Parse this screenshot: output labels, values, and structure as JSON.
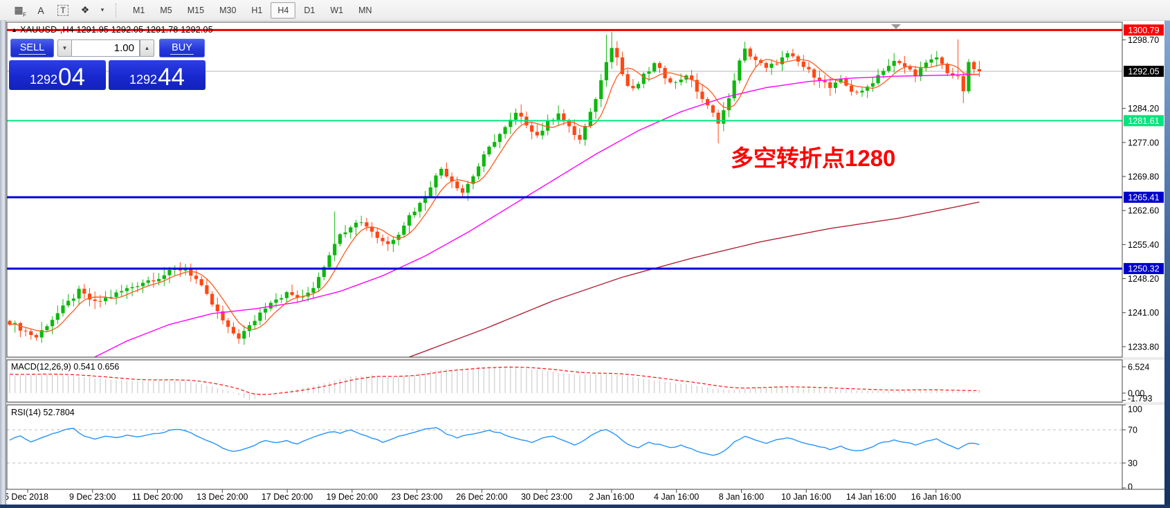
{
  "toolbar": {
    "icons": [
      {
        "name": "indicator-list-icon",
        "glyph": "▦",
        "sub": "F"
      },
      {
        "name": "insert-text-icon",
        "glyph": "A",
        "sub": ""
      },
      {
        "name": "text-label-icon",
        "glyph": "T",
        "sub": ""
      },
      {
        "name": "shapes-icon",
        "glyph": "❖",
        "sub": ""
      },
      {
        "name": "shapes-caret-icon",
        "glyph": "▾",
        "sub": ""
      }
    ],
    "timeframes": [
      "M1",
      "M5",
      "M15",
      "M30",
      "H1",
      "H4",
      "D1",
      "W1",
      "MN"
    ],
    "active_timeframe": "H4"
  },
  "chart_header": {
    "marker": "▲",
    "text": "XAUUSD-,H4  1291.95 1292.05 1291.78 1292.05"
  },
  "annotation": {
    "text": "多空转折点1280",
    "color": "#ff0000"
  },
  "trade_panel": {
    "sell_label": "SELL",
    "buy_label": "BUY",
    "volume": "1.00",
    "spin_down_icon": "▼",
    "spin_up_icon": "▲",
    "sell_price_main": "1292",
    "sell_price_pips": "04",
    "buy_price_main": "1292",
    "buy_price_pips": "44"
  },
  "chart_data": {
    "type": "candlestick",
    "symbol": "XAUUSD-",
    "period": "H4",
    "ohlc": {
      "open": 1291.95,
      "high": 1292.05,
      "low": 1291.78,
      "close": 1292.05
    },
    "price_axis_ticks": [
      "1298.70",
      "1284.20",
      "1277.00",
      "1269.80",
      "1262.60",
      "1255.40",
      "1248.20",
      "1241.00",
      "1233.80"
    ],
    "price_lines": [
      {
        "price": 1300.79,
        "label": "1300.79",
        "color": "#ee0000",
        "badge_bg": "#ff0000",
        "badge_fg": "#ffffff",
        "width": 3
      },
      {
        "price": 1281.61,
        "label": "1281.61",
        "color": "#00e57d",
        "badge_bg": "#00e57d",
        "badge_fg": "#ffffff",
        "width": 2
      },
      {
        "price": 1265.41,
        "label": "1265.41",
        "color": "#0000dd",
        "badge_bg": "#0000cc",
        "badge_fg": "#ffffff",
        "width": 3
      },
      {
        "price": 1250.32,
        "label": "1250.32",
        "color": "#0000dd",
        "badge_bg": "#0000cc",
        "badge_fg": "#ffffff",
        "width": 3
      }
    ],
    "current_price": {
      "price": 1292.05,
      "label": "1292.05",
      "line_color": "#b4b4b4",
      "badge_bg": "#000000",
      "badge_fg": "#ffffff"
    },
    "top_marker": {
      "glyph": "triangle-down",
      "color": "#9a9a9a"
    },
    "time_axis_labels": [
      "5 Dec 2018",
      "9 Dec 23:00",
      "11 Dec 20:00",
      "13 Dec 20:00",
      "17 Dec 20:00",
      "19 Dec 20:00",
      "23 Dec 23:00",
      "26 Dec 20:00",
      "30 Dec 23:00",
      "2 Jan 16:00",
      "4 Jan 16:00",
      "8 Jan 16:00",
      "10 Jan 16:00",
      "14 Jan 16:00",
      "16 Jan 16:00"
    ],
    "colors": {
      "bull": "#0db80d",
      "bear": "#ff4714",
      "ma_fast": "#ff5a1e",
      "ma_mid": "#ff00ff",
      "ma_slow": "#b22235",
      "macd_hist": "#cdcdcd",
      "macd_signal": "#ff1111",
      "rsi_line": "#2492ff",
      "rsi_levels": "#bcbcbc"
    },
    "candles": {
      "count": 183,
      "close_waypoints": [
        [
          0,
          1239.0
        ],
        [
          3,
          1237.0
        ],
        [
          5,
          1235.8
        ],
        [
          7,
          1238.5
        ],
        [
          10,
          1242.0
        ],
        [
          13,
          1245.5
        ],
        [
          16,
          1243.0
        ],
        [
          19,
          1244.5
        ],
        [
          22,
          1246.0
        ],
        [
          25,
          1247.5
        ],
        [
          28,
          1248.5
        ],
        [
          31,
          1250.0
        ],
        [
          33,
          1250.3
        ],
        [
          35,
          1248.0
        ],
        [
          37,
          1244.5
        ],
        [
          39,
          1241.0
        ],
        [
          41,
          1237.5
        ],
        [
          43,
          1235.8
        ],
        [
          45,
          1238.0
        ],
        [
          47,
          1241.0
        ],
        [
          49,
          1243.5
        ],
        [
          52,
          1245.0
        ],
        [
          55,
          1244.0
        ],
        [
          57,
          1246.5
        ],
        [
          59,
          1251.0
        ],
        [
          61,
          1256.0
        ],
        [
          63,
          1258.5
        ],
        [
          65,
          1260.5
        ],
        [
          67,
          1259.5
        ],
        [
          69,
          1257.0
        ],
        [
          71,
          1255.5
        ],
        [
          73,
          1258.0
        ],
        [
          75,
          1261.5
        ],
        [
          77,
          1264.0
        ],
        [
          79,
          1268.0
        ],
        [
          81,
          1271.5
        ],
        [
          83,
          1269.0
        ],
        [
          85,
          1266.5
        ],
        [
          87,
          1270.0
        ],
        [
          89,
          1274.0
        ],
        [
          91,
          1277.5
        ],
        [
          93,
          1280.0
        ],
        [
          95,
          1283.0
        ],
        [
          97,
          1281.0
        ],
        [
          99,
          1278.5
        ],
        [
          101,
          1281.0
        ],
        [
          103,
          1283.5
        ],
        [
          105,
          1280.0
        ],
        [
          107,
          1277.5
        ],
        [
          109,
          1283.0
        ],
        [
          111,
          1290.0
        ],
        [
          112,
          1294.5
        ],
        [
          113,
          1297.5
        ],
        [
          114,
          1295.0
        ],
        [
          115,
          1291.5
        ],
        [
          116,
          1289.0
        ],
        [
          117,
          1288.0
        ],
        [
          119,
          1291.0
        ],
        [
          121,
          1293.5
        ],
        [
          123,
          1291.0
        ],
        [
          125,
          1289.5
        ],
        [
          127,
          1291.5
        ],
        [
          129,
          1288.0
        ],
        [
          131,
          1284.5
        ],
        [
          133,
          1281.5
        ],
        [
          135,
          1286.0
        ],
        [
          136,
          1290.5
        ],
        [
          137,
          1294.0
        ],
        [
          138,
          1296.5
        ],
        [
          140,
          1294.5
        ],
        [
          142,
          1292.5
        ],
        [
          144,
          1294.0
        ],
        [
          146,
          1295.5
        ],
        [
          148,
          1294.0
        ],
        [
          150,
          1292.0
        ],
        [
          152,
          1290.5
        ],
        [
          154,
          1288.5
        ],
        [
          156,
          1290.0
        ],
        [
          158,
          1288.0
        ],
        [
          160,
          1287.5
        ],
        [
          162,
          1290.0
        ],
        [
          164,
          1292.5
        ],
        [
          166,
          1294.0
        ],
        [
          168,
          1293.0
        ],
        [
          170,
          1291.5
        ],
        [
          172,
          1293.5
        ],
        [
          174,
          1295.0
        ],
        [
          176,
          1292.0
        ],
        [
          178,
          1290.5
        ],
        [
          179,
          1288.0
        ],
        [
          180,
          1293.5
        ],
        [
          181,
          1292.5
        ],
        [
          182,
          1292.05
        ]
      ],
      "wick_overrides": [
        [
          61,
          "h",
          1262.4
        ],
        [
          112,
          "h",
          1299.8
        ],
        [
          113,
          "h",
          1300.4
        ],
        [
          133,
          "l",
          1276.8
        ],
        [
          138,
          "h",
          1298.3
        ],
        [
          178,
          "h",
          1298.8
        ],
        [
          179,
          "l",
          1285.3
        ]
      ]
    },
    "ma_mid_waypoints": [
      [
        14,
        1230.5
      ],
      [
        22,
        1235.0
      ],
      [
        30,
        1238.5
      ],
      [
        38,
        1240.8
      ],
      [
        46,
        1241.8
      ],
      [
        54,
        1243.2
      ],
      [
        62,
        1245.5
      ],
      [
        70,
        1248.8
      ],
      [
        78,
        1253.0
      ],
      [
        86,
        1258.0
      ],
      [
        94,
        1263.5
      ],
      [
        102,
        1269.0
      ],
      [
        110,
        1274.5
      ],
      [
        118,
        1279.5
      ],
      [
        126,
        1283.5
      ],
      [
        134,
        1286.5
      ],
      [
        142,
        1288.6
      ],
      [
        150,
        1289.9
      ],
      [
        158,
        1290.6
      ],
      [
        166,
        1291.0
      ],
      [
        174,
        1291.2
      ],
      [
        182,
        1291.4
      ]
    ],
    "ma_slow_waypoints": [
      [
        75,
        1231.6
      ],
      [
        89,
        1237.5
      ],
      [
        102,
        1243.5
      ],
      [
        115,
        1248.5
      ],
      [
        128,
        1252.5
      ],
      [
        141,
        1256.0
      ],
      [
        154,
        1258.8
      ],
      [
        167,
        1261.0
      ],
      [
        176,
        1263.0
      ],
      [
        182,
        1264.4
      ]
    ],
    "macd": {
      "label": "MACD(12,26,9) 0.541 0.656",
      "main_value": 0.541,
      "signal_value": 0.656,
      "axis_ticks": [
        "6.524",
        "0.00",
        "-1.793"
      ],
      "hist_waypoints": [
        [
          0,
          4.4
        ],
        [
          6,
          4.7
        ],
        [
          12,
          4.3
        ],
        [
          18,
          3.5
        ],
        [
          24,
          2.9
        ],
        [
          30,
          3.3
        ],
        [
          34,
          2.8
        ],
        [
          38,
          1.6
        ],
        [
          42,
          0.2
        ],
        [
          45,
          -1.79
        ],
        [
          48,
          -0.4
        ],
        [
          52,
          0.6
        ],
        [
          56,
          1.5
        ],
        [
          60,
          2.9
        ],
        [
          64,
          4.1
        ],
        [
          68,
          4.5
        ],
        [
          72,
          4.0
        ],
        [
          76,
          4.5
        ],
        [
          80,
          5.7
        ],
        [
          84,
          6.1
        ],
        [
          88,
          6.4
        ],
        [
          92,
          6.5
        ],
        [
          96,
          6.2
        ],
        [
          100,
          5.6
        ],
        [
          104,
          5.0
        ],
        [
          108,
          4.5
        ],
        [
          112,
          4.8
        ],
        [
          116,
          4.2
        ],
        [
          120,
          3.4
        ],
        [
          124,
          2.7
        ],
        [
          128,
          2.0
        ],
        [
          132,
          1.1
        ],
        [
          136,
          0.8
        ],
        [
          140,
          1.3
        ],
        [
          144,
          1.6
        ],
        [
          148,
          1.4
        ],
        [
          152,
          1.1
        ],
        [
          156,
          0.85
        ],
        [
          160,
          0.7
        ],
        [
          164,
          0.6
        ],
        [
          168,
          0.7
        ],
        [
          172,
          0.8
        ],
        [
          176,
          0.6
        ],
        [
          180,
          0.5
        ],
        [
          182,
          0.541
        ]
      ]
    },
    "rsi": {
      "label": "RSI(14) 52.7804",
      "value": 52.7804,
      "axis_ticks": [
        "100",
        "70",
        "30",
        "0"
      ],
      "dashed_levels": [
        70,
        30
      ],
      "waypoints": [
        [
          0,
          58
        ],
        [
          2,
          62
        ],
        [
          4,
          56
        ],
        [
          6,
          60
        ],
        [
          8,
          65
        ],
        [
          10,
          70
        ],
        [
          12,
          71
        ],
        [
          14,
          62
        ],
        [
          16,
          58
        ],
        [
          18,
          62
        ],
        [
          20,
          60
        ],
        [
          22,
          63
        ],
        [
          24,
          61
        ],
        [
          26,
          64
        ],
        [
          28,
          66
        ],
        [
          30,
          69
        ],
        [
          32,
          71
        ],
        [
          34,
          67
        ],
        [
          36,
          60
        ],
        [
          38,
          55
        ],
        [
          40,
          48
        ],
        [
          42,
          44
        ],
        [
          44,
          47
        ],
        [
          46,
          52
        ],
        [
          48,
          57
        ],
        [
          50,
          54
        ],
        [
          52,
          57
        ],
        [
          54,
          53
        ],
        [
          56,
          58
        ],
        [
          58,
          64
        ],
        [
          60,
          68
        ],
        [
          62,
          66
        ],
        [
          64,
          69
        ],
        [
          66,
          64
        ],
        [
          68,
          60
        ],
        [
          70,
          55
        ],
        [
          72,
          60
        ],
        [
          74,
          64
        ],
        [
          76,
          67
        ],
        [
          78,
          71
        ],
        [
          80,
          73
        ],
        [
          82,
          65
        ],
        [
          84,
          60
        ],
        [
          86,
          64
        ],
        [
          88,
          67
        ],
        [
          90,
          69
        ],
        [
          92,
          66
        ],
        [
          94,
          62
        ],
        [
          96,
          58
        ],
        [
          98,
          55
        ],
        [
          100,
          60
        ],
        [
          102,
          63
        ],
        [
          104,
          57
        ],
        [
          106,
          52
        ],
        [
          108,
          58
        ],
        [
          110,
          66
        ],
        [
          112,
          71
        ],
        [
          114,
          63
        ],
        [
          116,
          53
        ],
        [
          118,
          48
        ],
        [
          120,
          55
        ],
        [
          122,
          52
        ],
        [
          124,
          48
        ],
        [
          126,
          52
        ],
        [
          128,
          47
        ],
        [
          130,
          42
        ],
        [
          132,
          39
        ],
        [
          134,
          44
        ],
        [
          136,
          55
        ],
        [
          138,
          62
        ],
        [
          140,
          58
        ],
        [
          142,
          54
        ],
        [
          144,
          58
        ],
        [
          146,
          60
        ],
        [
          148,
          57
        ],
        [
          150,
          53
        ],
        [
          152,
          50
        ],
        [
          154,
          46
        ],
        [
          156,
          50
        ],
        [
          158,
          46
        ],
        [
          160,
          45
        ],
        [
          162,
          50
        ],
        [
          164,
          55
        ],
        [
          166,
          58
        ],
        [
          168,
          55
        ],
        [
          170,
          52
        ],
        [
          172,
          56
        ],
        [
          174,
          59
        ],
        [
          176,
          52
        ],
        [
          178,
          47
        ],
        [
          180,
          54
        ],
        [
          182,
          52.78
        ]
      ]
    }
  }
}
